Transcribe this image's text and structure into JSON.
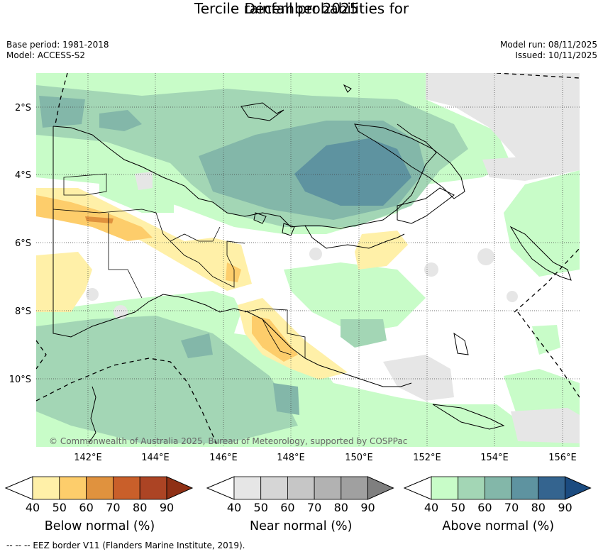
{
  "title_line1": "Tercile rainfall probabilities for",
  "title_line2": "December 2025",
  "base_period": "Base period: 1981-2018",
  "model": "Model: ACCESS-S2",
  "model_run": "Model run: 08/11/2025",
  "issued": "Issued: 10/11/2025",
  "copyright": "© Commonwealth of Australia 2025, Bureau of Meteorology, supported by COSPPac",
  "lat_labels": [
    "2°S",
    "4°S",
    "6°S",
    "8°S",
    "10°S"
  ],
  "lon_labels": [
    "142°E",
    "144°E",
    "146°E",
    "148°E",
    "150°E",
    "152°E",
    "154°E",
    "156°E"
  ],
  "colorbars": [
    {
      "title": "Below normal (%)",
      "ticks": [
        "40",
        "50",
        "60",
        "70",
        "80",
        "90"
      ],
      "colors": [
        "#fff0a8",
        "#fdcd6b",
        "#e0923e",
        "#c95f2a",
        "#ac4424",
        "#8f3015"
      ]
    },
    {
      "title": "Near normal (%)",
      "ticks": [
        "40",
        "50",
        "60",
        "70",
        "80",
        "90"
      ],
      "colors": [
        "#e6e6e6",
        "#d6d6d6",
        "#c6c6c6",
        "#b2b2b2",
        "#a0a0a0",
        "#7f7f7f"
      ]
    },
    {
      "title": "Above normal (%)",
      "ticks": [
        "40",
        "50",
        "60",
        "70",
        "80",
        "90"
      ],
      "colors": [
        "#c8fcc8",
        "#a3d6b5",
        "#83b7a9",
        "#5e93a0",
        "#34648f",
        "#1b4b80"
      ]
    }
  ],
  "footer": "--  --  -- EEZ border V11 (Flanders Marine Institute, 2019)."
}
